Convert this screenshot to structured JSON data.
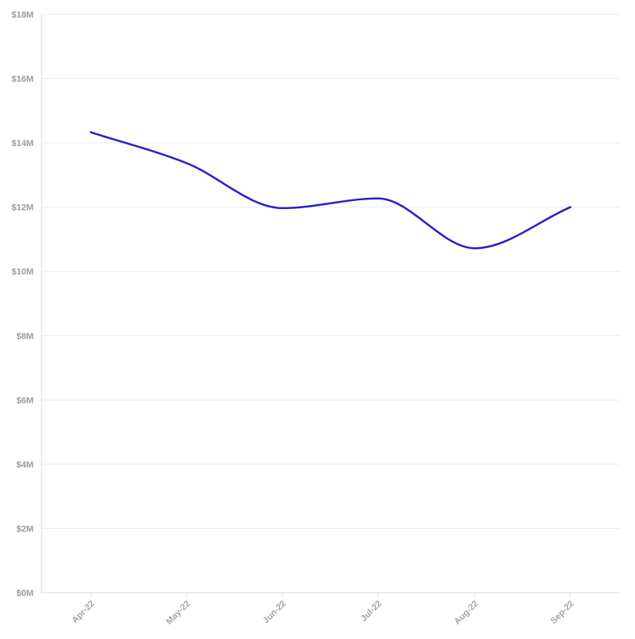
{
  "colors": {
    "line": "#2a1fc6",
    "grid": "#ececec",
    "axis": "#d9d9d9",
    "tick_text": "#9a9a9a"
  },
  "chart_data": {
    "type": "line",
    "title": "",
    "xlabel": "",
    "ylabel": "",
    "categories": [
      "Apr-22",
      "May-22",
      "Jun-22",
      "Jul-22",
      "Aug-22",
      "Sep-22"
    ],
    "series": [
      {
        "values": [
          14.33,
          13.37,
          11.97,
          12.27,
          10.72,
          12.0
        ]
      }
    ],
    "ylim": [
      0,
      18
    ],
    "y_ticks": [
      0,
      2,
      4,
      6,
      8,
      10,
      12,
      14,
      16,
      18
    ],
    "y_tick_labels": [
      "$0M",
      "$2M",
      "$4M",
      "$6M",
      "$8M",
      "$10M",
      "$12M",
      "$14M",
      "$16M",
      "$18M"
    ],
    "grid": true,
    "legend": "none"
  }
}
